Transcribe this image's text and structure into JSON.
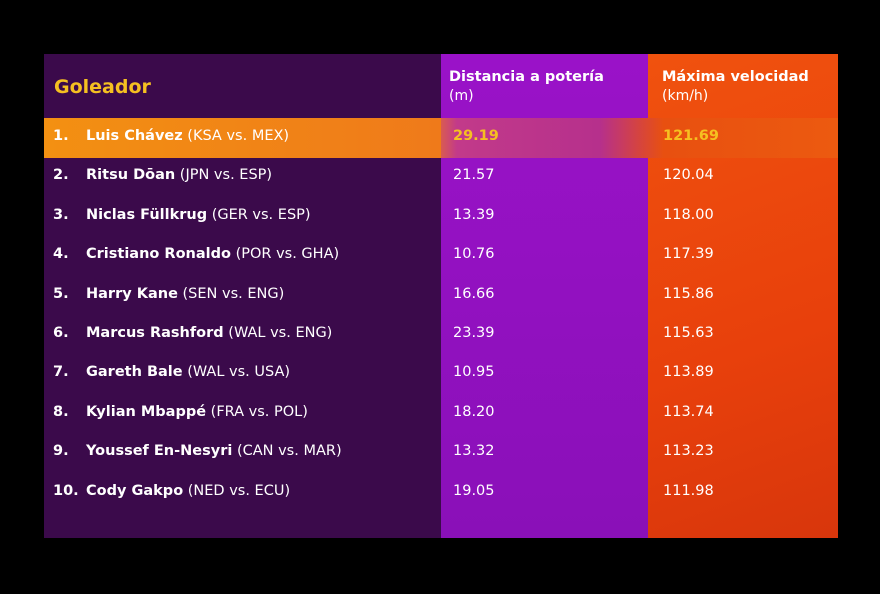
{
  "header": {
    "scorer": "Goleador",
    "distance": "Distancia a potería",
    "distance_unit": "(m)",
    "speed": "Máxima velocidad",
    "speed_unit": "(km/h)"
  },
  "colors": {
    "col_scorer": "#3b0a4b",
    "col_distance": "#9a12c8",
    "col_speed": "#f0520e",
    "highlight": "#f39012",
    "accent_text": "#f5c021"
  },
  "rows": [
    {
      "rank": "1.",
      "name": "Luis Chávez",
      "match": "(KSA vs. MEX)",
      "distance": "29.19",
      "speed": "121.69"
    },
    {
      "rank": "2.",
      "name": "Ritsu Dōan",
      "match": "(JPN vs. ESP)",
      "distance": "21.57",
      "speed": "120.04"
    },
    {
      "rank": "3.",
      "name": "Niclas Füllkrug",
      "match": "(GER vs. ESP)",
      "distance": "13.39",
      "speed": "118.00"
    },
    {
      "rank": "4.",
      "name": "Cristiano Ronaldo",
      "match": "(POR vs. GHA)",
      "distance": "10.76",
      "speed": "117.39"
    },
    {
      "rank": "5.",
      "name": "Harry Kane",
      "match": "(SEN vs. ENG)",
      "distance": "16.66",
      "speed": "115.86"
    },
    {
      "rank": "6.",
      "name": "Marcus Rashford",
      "match": "(WAL vs. ENG)",
      "distance": "23.39",
      "speed": "115.63"
    },
    {
      "rank": "7.",
      "name": "Gareth Bale",
      "match": "(WAL vs. USA)",
      "distance": "10.95",
      "speed": "113.89"
    },
    {
      "rank": "8.",
      "name": "Kylian Mbappé",
      "match": "(FRA vs. POL)",
      "distance": "18.20",
      "speed": "113.74"
    },
    {
      "rank": "9.",
      "name": "Youssef En-Nesyri",
      "match": "(CAN vs. MAR)",
      "distance": "13.32",
      "speed": "113.23"
    },
    {
      "rank": "10.",
      "name": "Cody Gakpo",
      "match": "(NED vs. ECU)",
      "distance": "19.05",
      "speed": "111.98"
    }
  ]
}
